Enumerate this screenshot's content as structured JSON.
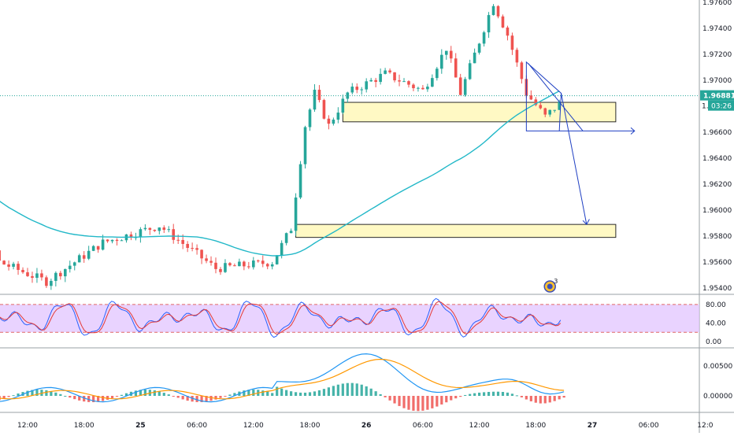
{
  "chart_data": {
    "type": "candlestick",
    "price_axis": {
      "ticks": [
        "1.97600",
        "1.97400",
        "1.97200",
        "1.97000",
        "1.96600",
        "1.96400",
        "1.96200",
        "1.96000",
        "1.95800",
        "1.95600",
        "1.95400"
      ],
      "range": [
        1.9532,
        1.9762
      ],
      "last_price": "1.96881",
      "last_price_value": 1.96881,
      "countdown": "03:26",
      "countdown_prefix": "1.",
      "ma_color": "#22b8c8",
      "up_color": "#26a69a",
      "down_color": "#ef5350"
    },
    "time_axis": {
      "labels": [
        "12:00",
        "18:00",
        "25",
        "06:00",
        "12:00",
        "18:00",
        "26",
        "06:00",
        "12:00",
        "18:00",
        "27",
        "06:00",
        "12:0"
      ],
      "label_hours": [
        12,
        18,
        24,
        30,
        36,
        42,
        48,
        54,
        60,
        66,
        72,
        78,
        84
      ]
    },
    "candles_summary": [
      {
        "hour": 0,
        "close": 1.959
      },
      {
        "hour": 4,
        "close": 1.9643
      },
      {
        "hour": 9,
        "close": 1.956
      },
      {
        "hour": 14,
        "close": 1.9545
      },
      {
        "hour": 20,
        "close": 1.9575
      },
      {
        "hour": 26,
        "close": 1.9588
      },
      {
        "hour": 32,
        "close": 1.9555
      },
      {
        "hour": 38,
        "close": 1.956
      },
      {
        "hour": 40,
        "close": 1.9586
      },
      {
        "hour": 41.5,
        "close": 1.9665
      },
      {
        "hour": 42.5,
        "close": 1.969
      },
      {
        "hour": 44,
        "close": 1.9665
      },
      {
        "hour": 46,
        "close": 1.969
      },
      {
        "hour": 50,
        "close": 1.9705
      },
      {
        "hour": 54,
        "close": 1.9692
      },
      {
        "hour": 56.5,
        "close": 1.9725
      },
      {
        "hour": 58,
        "close": 1.969
      },
      {
        "hour": 60.5,
        "close": 1.974
      },
      {
        "hour": 61.5,
        "close": 1.976
      },
      {
        "hour": 63,
        "close": 1.9735
      },
      {
        "hour": 65,
        "close": 1.969
      },
      {
        "hour": 67,
        "close": 1.9672
      },
      {
        "hour": 68.5,
        "close": 1.9682
      }
    ],
    "zones": [
      {
        "from_hour": 45.5,
        "to_hour": 74.5,
        "top": 1.9683,
        "bottom": 1.9668,
        "color": "#fff9c4"
      },
      {
        "from_hour": 40.5,
        "to_hour": 74.5,
        "top": 1.9589,
        "bottom": 1.9579,
        "color": "#fff9c4"
      }
    ],
    "stochastic": {
      "ticks": [
        "80.00",
        "40.00",
        "0.00"
      ],
      "levels": [
        80,
        20
      ],
      "band_color": "#e1c4ff"
    },
    "macd": {
      "ticks": [
        "0.00500",
        "0.00000"
      ],
      "macd_color": "#2196f3",
      "signal_color": "#ff9800"
    },
    "badge": "3"
  }
}
